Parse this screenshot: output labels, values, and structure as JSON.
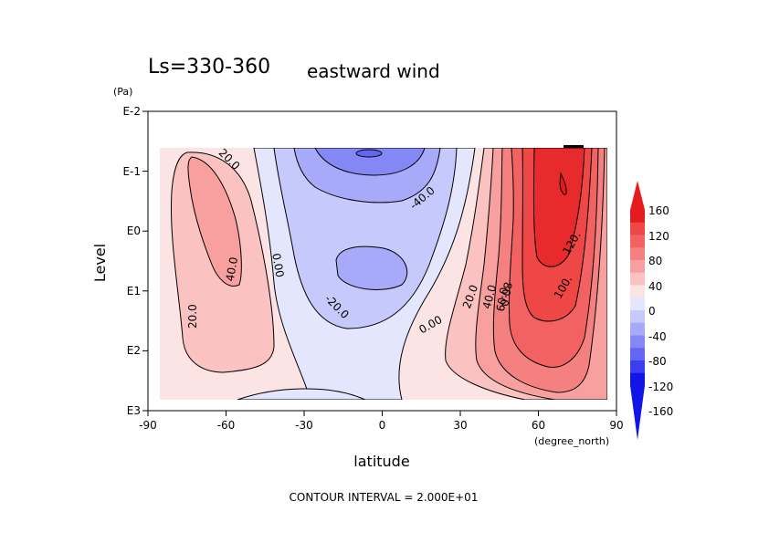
{
  "chart_data": {
    "type": "contour",
    "title": "Ls=330-360",
    "subtitle": "eastward wind",
    "xlabel": "latitude",
    "xunit": "(degree_north)",
    "ylabel": "Level",
    "yunit": "(Pa)",
    "footer": "CONTOUR INTERVAL = 2.000E+01",
    "contour_interval": 20,
    "x_range": [
      -90,
      90
    ],
    "y_scale": "log",
    "y_range_exponent": [
      3,
      -2
    ],
    "x_ticks": [
      "-90",
      "-60",
      "-30",
      "0",
      "30",
      "60",
      "90"
    ],
    "y_ticks": [
      "E-2",
      "E-1",
      "E0",
      "E1",
      "E2",
      "E3"
    ],
    "colorbar": {
      "labels": [
        "160",
        "120",
        "80",
        "40",
        "0",
        "-40",
        "-80",
        "-120",
        "-160"
      ],
      "colors_top_to_bottom": [
        "#e41a1c",
        "#ef4646",
        "#f26262",
        "#f58080",
        "#f8a0a0",
        "#fbc2c2",
        "#fde4e4",
        "#e4e6fd",
        "#c6c9fb",
        "#a6aaf8",
        "#8488f5",
        "#6266f2",
        "#3a3eef",
        "#1116e6"
      ]
    },
    "contour_labels": [
      "20.0",
      "40.0",
      "20.0",
      "0.00",
      "-20.0",
      "-40.0",
      "0.00",
      "20.0",
      "40.0",
      "60.0",
      "80.0",
      "100.",
      "120."
    ]
  }
}
